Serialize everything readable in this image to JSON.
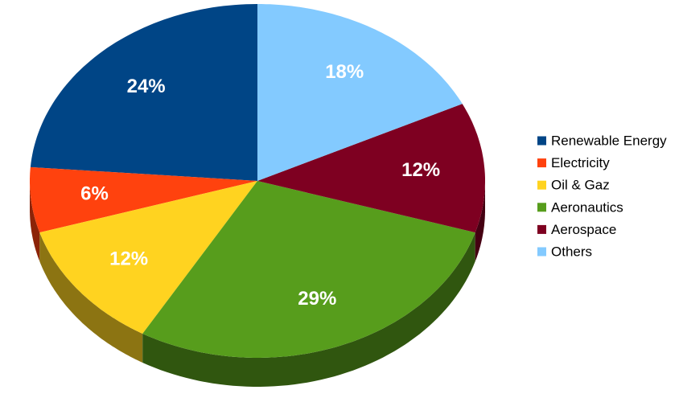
{
  "chart_data": {
    "type": "pie",
    "categories": [
      "Renewable Energy",
      "Electricity",
      "Oil & Gaz",
      "Aeronautics",
      "Aerospace",
      "Others"
    ],
    "values": [
      24,
      6,
      12,
      29,
      12,
      18
    ],
    "value_labels": [
      "24%",
      "6%",
      "12%",
      "29%",
      "12%",
      "18%"
    ],
    "colors": [
      "#004586",
      "#ff420e",
      "#ffd320",
      "#579d1c",
      "#7e0021",
      "#83caff"
    ],
    "legend": "right"
  }
}
